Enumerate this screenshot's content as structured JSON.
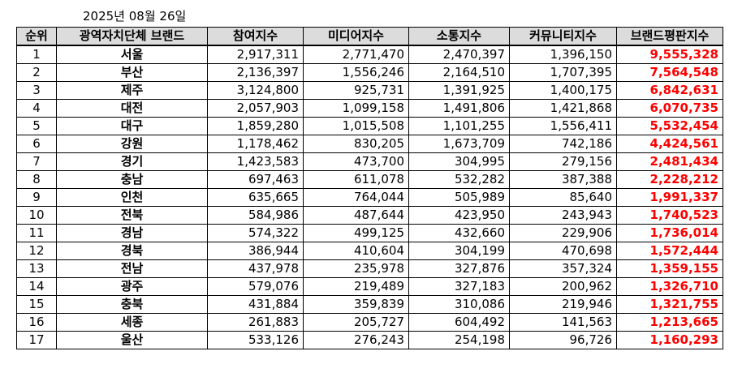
{
  "date": "2025년 08월 26일",
  "columns": [
    "순위",
    "광역자치단체 브랜드",
    "참여지수",
    "미디어지수",
    "소통지수",
    "커뮤니티지수",
    "브랜드평판지수"
  ],
  "rows": [
    {
      "rank": "1",
      "region": "서울",
      "participation": "2,917,311",
      "media": "2,771,470",
      "communication": "2,470,397",
      "community": "1,396,150",
      "brand": "9,555,328"
    },
    {
      "rank": "2",
      "region": "부산",
      "participation": "2,136,397",
      "media": "1,556,246",
      "communication": "2,164,510",
      "community": "1,707,395",
      "brand": "7,564,548"
    },
    {
      "rank": "3",
      "region": "제주",
      "participation": "3,124,800",
      "media": "925,731",
      "communication": "1,391,925",
      "community": "1,400,175",
      "brand": "6,842,631"
    },
    {
      "rank": "4",
      "region": "대전",
      "participation": "2,057,903",
      "media": "1,099,158",
      "communication": "1,491,806",
      "community": "1,421,868",
      "brand": "6,070,735"
    },
    {
      "rank": "5",
      "region": "대구",
      "participation": "1,859,280",
      "media": "1,015,508",
      "communication": "1,101,255",
      "community": "1,556,411",
      "brand": "5,532,454"
    },
    {
      "rank": "6",
      "region": "강원",
      "participation": "1,178,462",
      "media": "830,205",
      "communication": "1,673,709",
      "community": "742,186",
      "brand": "4,424,561"
    },
    {
      "rank": "7",
      "region": "경기",
      "participation": "1,423,583",
      "media": "473,700",
      "communication": "304,995",
      "community": "279,156",
      "brand": "2,481,434"
    },
    {
      "rank": "8",
      "region": "충남",
      "participation": "697,463",
      "media": "611,078",
      "communication": "532,282",
      "community": "387,388",
      "brand": "2,228,212"
    },
    {
      "rank": "9",
      "region": "인천",
      "participation": "635,665",
      "media": "764,044",
      "communication": "505,989",
      "community": "85,640",
      "brand": "1,991,337"
    },
    {
      "rank": "10",
      "region": "전북",
      "participation": "584,986",
      "media": "487,644",
      "communication": "423,950",
      "community": "243,943",
      "brand": "1,740,523"
    },
    {
      "rank": "11",
      "region": "경남",
      "participation": "574,322",
      "media": "499,125",
      "communication": "432,660",
      "community": "229,906",
      "brand": "1,736,014"
    },
    {
      "rank": "12",
      "region": "경북",
      "participation": "386,944",
      "media": "410,604",
      "communication": "304,199",
      "community": "470,698",
      "brand": "1,572,444"
    },
    {
      "rank": "13",
      "region": "전남",
      "participation": "437,978",
      "media": "235,978",
      "communication": "327,876",
      "community": "357,324",
      "brand": "1,359,155"
    },
    {
      "rank": "14",
      "region": "광주",
      "participation": "579,076",
      "media": "219,489",
      "communication": "327,183",
      "community": "200,962",
      "brand": "1,326,710"
    },
    {
      "rank": "15",
      "region": "충북",
      "participation": "431,884",
      "media": "359,839",
      "communication": "310,086",
      "community": "219,946",
      "brand": "1,321,755"
    },
    {
      "rank": "16",
      "region": "세종",
      "participation": "261,883",
      "media": "205,727",
      "communication": "604,492",
      "community": "141,563",
      "brand": "1,213,665"
    },
    {
      "rank": "17",
      "region": "울산",
      "participation": "533,126",
      "media": "276,243",
      "communication": "254,198",
      "community": "96,726",
      "brand": "1,160,293"
    }
  ],
  "colors": {
    "header_bg": "#dcdcdc",
    "brand_value": "#ff0000"
  }
}
